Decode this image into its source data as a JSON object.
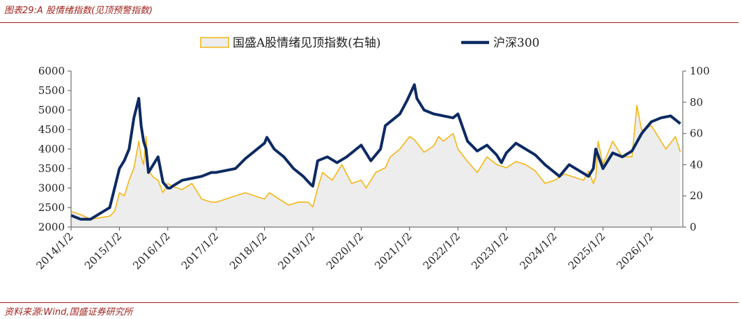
{
  "header": {
    "figure_title": "图表29:A 股情绪指数(见顶预警指数)"
  },
  "footer": {
    "source": "资料来源:Wind,国盛证券研究所"
  },
  "colors": {
    "accent": "#a0241e",
    "series_sentiment": "#f2b716",
    "series_csi300": "#0d2a63",
    "area_fill": "#ededed"
  },
  "chart_data": {
    "type": "line",
    "legend": {
      "placement": "top-center",
      "items": [
        "国盛A股情绪见顶指数(右轴)",
        "沪深300"
      ]
    },
    "x_ticks": [
      "2014/1/2",
      "2015/1/2",
      "2016/1/2",
      "2017/1/2",
      "2018/1/2",
      "2019/1/2",
      "2020/1/2",
      "2021/1/2",
      "2022/1/2",
      "2023/1/2",
      "2024/1/2",
      "2025/1/2",
      "2026/1/2"
    ],
    "left_axis": {
      "ylim": [
        2000,
        6000
      ],
      "ticks": [
        2000,
        2500,
        3000,
        3500,
        4000,
        4500,
        5000,
        5500,
        6000
      ]
    },
    "right_axis": {
      "ylim": [
        0,
        100
      ],
      "ticks": [
        0,
        20,
        40,
        60,
        80,
        100
      ]
    },
    "grid": false,
    "series": [
      {
        "name": "沪深300",
        "axis": "left",
        "x": [
          2014.0,
          2014.2,
          2014.4,
          2014.6,
          2014.8,
          2014.9,
          2015.0,
          2015.1,
          2015.2,
          2015.3,
          2015.4,
          2015.45,
          2015.5,
          2015.55,
          2015.6,
          2015.7,
          2015.8,
          2015.9,
          2016.0,
          2016.05,
          2016.1,
          2016.3,
          2016.5,
          2016.7,
          2016.9,
          2017.0,
          2017.2,
          2017.4,
          2017.6,
          2017.8,
          2018.0,
          2018.05,
          2018.2,
          2018.4,
          2018.6,
          2018.8,
          2018.95,
          2019.0,
          2019.1,
          2019.3,
          2019.5,
          2019.7,
          2019.9,
          2020.0,
          2020.2,
          2020.4,
          2020.5,
          2020.6,
          2020.8,
          2020.95,
          2021.1,
          2021.15,
          2021.3,
          2021.5,
          2021.7,
          2021.9,
          2022.0,
          2022.2,
          2022.4,
          2022.6,
          2022.8,
          2022.9,
          2023.0,
          2023.2,
          2023.4,
          2023.6,
          2023.8,
          2024.0,
          2024.1,
          2024.3,
          2024.5,
          2024.7,
          2024.8,
          2024.85,
          2025.0,
          2025.2,
          2025.4,
          2025.6,
          2025.8,
          2026.0,
          2026.2,
          2026.4,
          2026.6
        ],
        "values": [
          2300,
          2200,
          2200,
          2350,
          2500,
          3000,
          3500,
          3700,
          4000,
          4800,
          5300,
          4600,
          4200,
          4000,
          3400,
          3600,
          3800,
          3150,
          3000,
          3000,
          3050,
          3200,
          3250,
          3300,
          3400,
          3400,
          3450,
          3500,
          3750,
          3950,
          4150,
          4300,
          4000,
          3800,
          3500,
          3300,
          3100,
          3050,
          3700,
          3800,
          3650,
          3800,
          4000,
          4100,
          3700,
          4000,
          4600,
          4700,
          4900,
          5250,
          5650,
          5300,
          5000,
          4900,
          4850,
          4800,
          4900,
          4200,
          3950,
          4100,
          3850,
          3650,
          3900,
          4150,
          4000,
          3850,
          3600,
          3400,
          3300,
          3600,
          3450,
          3300,
          3500,
          4000,
          3500,
          3900,
          3800,
          3950,
          4400,
          4700,
          4800,
          4850,
          4650
        ]
      },
      {
        "name": "国盛A股情绪见顶指数(右轴)",
        "axis": "right",
        "x": [
          2014.0,
          2014.2,
          2014.4,
          2014.6,
          2014.8,
          2014.9,
          2015.0,
          2015.1,
          2015.2,
          2015.3,
          2015.4,
          2015.45,
          2015.5,
          2015.55,
          2015.6,
          2015.7,
          2015.8,
          2015.9,
          2016.0,
          2016.1,
          2016.3,
          2016.5,
          2016.7,
          2016.9,
          2017.0,
          2017.2,
          2017.4,
          2017.6,
          2017.8,
          2018.0,
          2018.1,
          2018.3,
          2018.5,
          2018.7,
          2018.9,
          2019.0,
          2019.1,
          2019.2,
          2019.4,
          2019.6,
          2019.8,
          2020.0,
          2020.1,
          2020.3,
          2020.5,
          2020.6,
          2020.8,
          2021.0,
          2021.1,
          2021.3,
          2021.5,
          2021.6,
          2021.7,
          2021.9,
          2022.0,
          2022.2,
          2022.4,
          2022.6,
          2022.8,
          2023.0,
          2023.2,
          2023.4,
          2023.6,
          2023.8,
          2024.0,
          2024.2,
          2024.4,
          2024.6,
          2024.7,
          2024.8,
          2024.85,
          2024.9,
          2025.0,
          2025.2,
          2025.4,
          2025.6,
          2025.7,
          2025.8,
          2026.0,
          2026.1,
          2026.3,
          2026.5,
          2026.6
        ],
        "values": [
          10,
          8,
          5,
          6,
          7,
          10,
          22,
          20,
          30,
          38,
          55,
          45,
          40,
          58,
          36,
          32,
          30,
          22,
          28,
          26,
          24,
          28,
          18,
          16,
          16,
          18,
          20,
          22,
          20,
          18,
          22,
          18,
          14,
          16,
          16,
          13,
          25,
          35,
          30,
          40,
          28,
          30,
          25,
          35,
          38,
          45,
          50,
          58,
          56,
          48,
          52,
          58,
          55,
          60,
          50,
          42,
          35,
          45,
          40,
          38,
          42,
          40,
          36,
          28,
          30,
          34,
          32,
          30,
          36,
          28,
          32,
          55,
          40,
          55,
          45,
          45,
          78,
          62,
          65,
          60,
          50,
          58,
          48
        ]
      }
    ]
  }
}
